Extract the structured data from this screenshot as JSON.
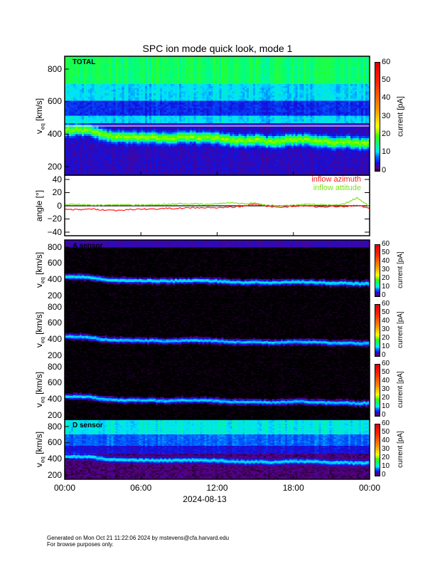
{
  "title": "SPC ion mode quick look, mode 1",
  "footer": {
    "line1": "Generated on Mon Oct 21 11:22:06 2024 by mstevens@cfa.harvard.edu",
    "line2": "For browse purposes only."
  },
  "chart_data": {
    "type": "heatmap",
    "title": "SPC ion mode quick look, mode 1",
    "xlabel": "2024-08-13",
    "xticks": [
      "00:00",
      "06:00",
      "12:00",
      "18:00",
      "00:00"
    ],
    "xlim_hours": [
      0,
      24
    ],
    "colors": {
      "azimuth": "#ff2020",
      "attitude": "#80e020"
    },
    "bulk_speed_hourly_kms": [
      425,
      425,
      420,
      392,
      382,
      380,
      378,
      376,
      372,
      378,
      380,
      378,
      372,
      362,
      356,
      362,
      352,
      356,
      366,
      360,
      356,
      346,
      350,
      340,
      345
    ],
    "panels": [
      {
        "id": "total",
        "label": "TOTAL",
        "ylabel": "v",
        "ysub": "eq",
        "yunit": " [km/s]",
        "yticks": [
          "800",
          "600",
          "400",
          "200"
        ],
        "ylim": [
          147,
          876
        ],
        "cbar_label": "current [pA]",
        "cbar_ticks": [
          "60",
          "50",
          "40",
          "30",
          "20",
          "10",
          "0"
        ],
        "clim": [
          0,
          60
        ]
      },
      {
        "id": "angle",
        "ylabel": "angle [°]",
        "yticks": [
          "40",
          "20",
          "0",
          "−20",
          "−40"
        ],
        "ylim": [
          -45,
          47
        ],
        "legend": [
          "inflow azimuth",
          "inflow attitude"
        ],
        "azimuth_hourly_deg": [
          -5,
          -6,
          -5,
          -6,
          -7,
          -6,
          -5,
          -5,
          -4,
          -4,
          -3,
          -3,
          -3,
          -2,
          -1,
          3,
          -1,
          -2,
          -1,
          0,
          -2,
          -1,
          -1,
          1,
          -4
        ],
        "attitude_hourly_deg": [
          2,
          2,
          1,
          1,
          1,
          2,
          1,
          2,
          2,
          3,
          3,
          2,
          3,
          5,
          3,
          4,
          1,
          0,
          1,
          2,
          2,
          1,
          3,
          12,
          -1
        ]
      },
      {
        "id": "a",
        "label": "A sensor",
        "ylabel": "v",
        "ysub": "eq",
        "yunit": " [km/s]",
        "yticks": [
          "800",
          "600",
          "400",
          "200"
        ],
        "ylim": [
          140,
          888
        ],
        "cbar_label": "current [pA]",
        "cbar_ticks": [
          "60",
          "50",
          "40",
          "30",
          "20",
          "10",
          "0"
        ],
        "clim": [
          0,
          60
        ]
      },
      {
        "id": "b",
        "ylabel": "v",
        "ysub": "eq",
        "yunit": " [km/s]",
        "yticks": [
          "800",
          "600",
          "400",
          "200"
        ],
        "ylim": [
          140,
          888
        ],
        "cbar_label": "current [pA]",
        "cbar_ticks": [
          "60",
          "50",
          "40",
          "30",
          "20",
          "10",
          "0"
        ],
        "clim": [
          0,
          60
        ]
      },
      {
        "id": "c",
        "ylabel": "v",
        "ysub": "eq",
        "yunit": " [km/s]",
        "yticks": [
          "800",
          "600",
          "400",
          "200"
        ],
        "ylim": [
          140,
          888
        ],
        "cbar_label": "current [pA]",
        "cbar_ticks": [
          "60",
          "50",
          "40",
          "30",
          "20",
          "10",
          "0"
        ],
        "clim": [
          0,
          60
        ]
      },
      {
        "id": "d",
        "label": "D sensor",
        "ylabel": "v",
        "ysub": "eq",
        "yunit": " [km/s]",
        "yticks": [
          "800",
          "600",
          "400",
          "200"
        ],
        "ylim": [
          140,
          888
        ],
        "cbar_label": "current [pA]",
        "cbar_ticks": [
          "60",
          "50",
          "40",
          "30",
          "20",
          "10",
          "0"
        ],
        "clim": [
          0,
          60
        ]
      }
    ]
  }
}
